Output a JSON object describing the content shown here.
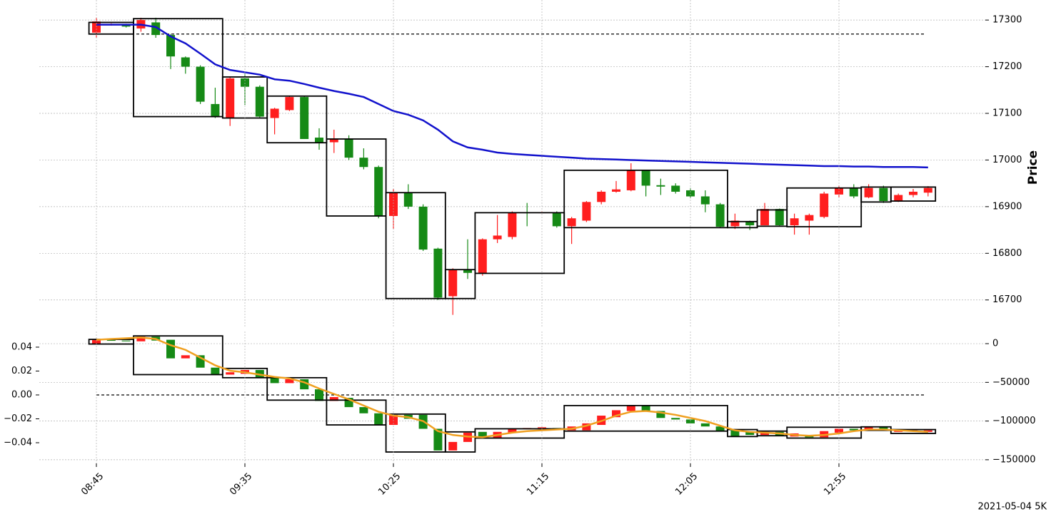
{
  "chart_data": [
    {
      "type": "candlestick",
      "ylabel": "Price",
      "up_color": "#ff1e1e",
      "down_color": "#168a16",
      "open": [
        17273,
        17290,
        17290,
        17282,
        17295,
        17268,
        17220,
        17200,
        17120,
        17090,
        17175,
        17157,
        17090,
        17107,
        17135,
        17048,
        17038,
        17045,
        17005,
        16985,
        16880,
        16930,
        16900,
        16810,
        16708,
        16765,
        16758,
        16830,
        16835,
        16888,
        16886,
        16888,
        16858,
        16870,
        16910,
        16932,
        16935,
        16977,
        16946,
        16945,
        16935,
        16922,
        16905,
        16858,
        16867,
        16860,
        16895,
        16860,
        16870,
        16878,
        16926,
        16940,
        16920,
        16940,
        16912,
        16925,
        16930
      ],
      "high": [
        17305,
        17293,
        17292,
        17305,
        17305,
        17270,
        17222,
        17203,
        17155,
        17178,
        17185,
        17160,
        17112,
        17138,
        17138,
        17068,
        17065,
        17053,
        17025,
        16988,
        16938,
        16948,
        16905,
        16812,
        16768,
        16830,
        16832,
        16882,
        16890,
        16908,
        16890,
        16890,
        16878,
        16912,
        16935,
        16955,
        16993,
        16978,
        16960,
        16950,
        16940,
        16935,
        16908,
        16885,
        16870,
        16908,
        16896,
        16885,
        16885,
        16932,
        16945,
        16948,
        16948,
        16945,
        16928,
        16938,
        16944
      ],
      "low": [
        17262,
        17288,
        17284,
        17275,
        17262,
        17195,
        17185,
        17120,
        17090,
        17073,
        17118,
        17090,
        17055,
        17105,
        17045,
        17022,
        17015,
        17000,
        16980,
        16875,
        16852,
        16895,
        16805,
        16700,
        16668,
        16745,
        16752,
        16822,
        16830,
        16858,
        16886,
        16855,
        16820,
        16867,
        16905,
        16930,
        16933,
        16922,
        16925,
        16928,
        16918,
        16888,
        16855,
        16852,
        16850,
        16860,
        16858,
        16840,
        16840,
        16875,
        16920,
        16918,
        16918,
        16908,
        16910,
        16920,
        16922
      ],
      "close": [
        17297,
        17291,
        17286,
        17300,
        17268,
        17222,
        17200,
        17125,
        17093,
        17175,
        17157,
        17093,
        17110,
        17135,
        17045,
        17038,
        17045,
        17005,
        16985,
        16880,
        16930,
        16900,
        16808,
        16705,
        16765,
        16758,
        16830,
        16838,
        16888,
        16886,
        16888,
        16858,
        16875,
        16910,
        16932,
        16937,
        16977,
        16945,
        16943,
        16932,
        16922,
        16905,
        16857,
        16870,
        16860,
        16895,
        16860,
        16875,
        16882,
        16928,
        16940,
        16922,
        16940,
        16912,
        16925,
        16932,
        16940
      ],
      "lines": [
        {
          "color": "#1212cc",
          "values": [
            17290,
            17290,
            17290,
            17290,
            17285,
            17265,
            17250,
            17228,
            17205,
            17193,
            17188,
            17183,
            17173,
            17170,
            17163,
            17155,
            17148,
            17142,
            17135,
            17120,
            17105,
            17097,
            17085,
            17065,
            17040,
            17027,
            17022,
            17016,
            17013,
            17011,
            17009,
            17007,
            17005,
            17003,
            17002,
            17001,
            17000,
            16999,
            16998,
            16997,
            16996,
            16995,
            16994,
            16993,
            16992,
            16991,
            16990,
            16989,
            16988,
            16987,
            16987,
            16986,
            16986,
            16985,
            16985,
            16985,
            16984
          ]
        }
      ],
      "hline": 17270,
      "boxes": [
        {
          "first": 0,
          "last": 2,
          "top": 17295,
          "bottom": 17270
        },
        {
          "first": 3,
          "last": 8,
          "top": 17303,
          "bottom": 17093
        },
        {
          "first": 9,
          "last": 11,
          "top": 17178,
          "bottom": 17090
        },
        {
          "first": 12,
          "last": 15,
          "top": 17137,
          "bottom": 17037
        },
        {
          "first": 16,
          "last": 19,
          "top": 17045,
          "bottom": 16880
        },
        {
          "first": 20,
          "last": 23,
          "top": 16930,
          "bottom": 16703
        },
        {
          "first": 24,
          "last": 25,
          "top": 16765,
          "bottom": 16703
        },
        {
          "first": 26,
          "last": 31,
          "top": 16887,
          "bottom": 16757
        },
        {
          "first": 32,
          "last": 42,
          "top": 16978,
          "bottom": 16855
        },
        {
          "first": 43,
          "last": 44,
          "top": 16868,
          "bottom": 16855
        },
        {
          "first": 45,
          "last": 46,
          "top": 16893,
          "bottom": 16858
        },
        {
          "first": 47,
          "last": 51,
          "top": 16940,
          "bottom": 16857
        },
        {
          "first": 52,
          "last": 53,
          "top": 16942,
          "bottom": 16910
        },
        {
          "first": 54,
          "last": 56,
          "top": 16942,
          "bottom": 16912
        }
      ],
      "ylim": [
        16640,
        17343
      ],
      "yticks": [
        16700,
        16800,
        16900,
        17000,
        17100,
        17200,
        17300
      ],
      "grid": true
    },
    {
      "type": "candlestick",
      "up_color": "#ff1e1e",
      "down_color": "#168a16",
      "categories": [
        "08:45",
        null,
        null,
        null,
        null,
        null,
        null,
        null,
        null,
        null,
        "09:35",
        null,
        null,
        null,
        null,
        null,
        null,
        null,
        null,
        null,
        "10:25",
        null,
        null,
        null,
        null,
        null,
        null,
        null,
        null,
        null,
        "11:15",
        null,
        null,
        null,
        null,
        null,
        null,
        null,
        null,
        null,
        "12:05",
        null,
        null,
        null,
        null,
        null,
        null,
        null,
        null,
        null,
        "12:55",
        null,
        null,
        null,
        null,
        null,
        null
      ],
      "open": [
        0,
        4600,
        4000,
        3000,
        9000,
        5000,
        -19000,
        -15000,
        -31000,
        -40000,
        -39000,
        -34000,
        -44000,
        -51000,
        -46000,
        -59000,
        -74000,
        -70000,
        -82000,
        -90000,
        -105000,
        -92000,
        -92000,
        -110000,
        -138000,
        -127000,
        -114000,
        -122000,
        -115000,
        -110000,
        -109000,
        -109000,
        -112000,
        -112000,
        -105000,
        -95000,
        -87000,
        -80000,
        -87000,
        -96000,
        -98000,
        -103000,
        -107000,
        -112000,
        -114000,
        -118000,
        -114000,
        -120000,
        -118000,
        -121000,
        -115000,
        -110000,
        -112000,
        -108000,
        -114000,
        -113000,
        -114000
      ],
      "close": [
        4600,
        4000,
        3000,
        9000,
        4000,
        -19000,
        -15000,
        -31000,
        -40000,
        -37000,
        -34000,
        -44000,
        -51000,
        -46000,
        -59000,
        -74000,
        -69000,
        -82000,
        -90000,
        -105000,
        -92000,
        -97000,
        -110000,
        -138000,
        -127000,
        -115000,
        -122000,
        -114000,
        -110000,
        -109000,
        -108000,
        -110000,
        -107000,
        -103000,
        -93000,
        -86000,
        -80000,
        -87000,
        -96000,
        -98000,
        -103000,
        -107000,
        -113000,
        -120000,
        -118000,
        -114000,
        -119000,
        -116000,
        -121000,
        -113000,
        -110000,
        -112000,
        -108000,
        -112000,
        -112000,
        -112000,
        -112000
      ],
      "axis": "y2",
      "lines": [
        {
          "color": "#f0a020",
          "axis": "y2",
          "values": [
            5000,
            6000,
            7000,
            8000,
            6000,
            -2000,
            -8000,
            -18000,
            -28000,
            -35000,
            -37000,
            -40000,
            -43000,
            -45000,
            -50000,
            -58000,
            -65000,
            -72000,
            -80000,
            -88000,
            -93000,
            -95000,
            -100000,
            -113000,
            -118000,
            -120000,
            -121000,
            -118000,
            -115000,
            -113000,
            -112000,
            -111000,
            -110000,
            -106000,
            -100000,
            -93000,
            -88000,
            -87000,
            -89000,
            -92000,
            -96000,
            -100000,
            -106000,
            -112000,
            -114000,
            -115000,
            -116000,
            -118000,
            -119000,
            -118000,
            -116000,
            -113000,
            -111000,
            -111000,
            -112000,
            -113000,
            -114000
          ]
        }
      ],
      "hline": 0,
      "boxes": [
        {
          "first": 0,
          "last": 2,
          "top": 5500,
          "bottom": -500
        },
        {
          "first": 3,
          "last": 8,
          "top": 10000,
          "bottom": -40000
        },
        {
          "first": 9,
          "last": 11,
          "top": -32000,
          "bottom": -44000
        },
        {
          "first": 12,
          "last": 15,
          "top": -44000,
          "bottom": -73000
        },
        {
          "first": 16,
          "last": 19,
          "top": -73000,
          "bottom": -105000
        },
        {
          "first": 20,
          "last": 23,
          "top": -91000,
          "bottom": -140000
        },
        {
          "first": 24,
          "last": 25,
          "top": -114000,
          "bottom": -140000
        },
        {
          "first": 26,
          "last": 31,
          "top": -110000,
          "bottom": -122000
        },
        {
          "first": 32,
          "last": 42,
          "top": -80000,
          "bottom": -113000
        },
        {
          "first": 43,
          "last": 44,
          "top": -111000,
          "bottom": -120000
        },
        {
          "first": 45,
          "last": 46,
          "top": -113000,
          "bottom": -119000
        },
        {
          "first": 47,
          "last": 51,
          "top": -108000,
          "bottom": -122000
        },
        {
          "first": 52,
          "last": 53,
          "top": -107500,
          "bottom": -112000
        },
        {
          "first": 54,
          "last": 56,
          "top": -111000,
          "bottom": -116000
        }
      ],
      "ylim": [
        -0.0573,
        0.0531
      ],
      "yticks": [
        0.04,
        0.02,
        {
          "value": 0,
          "label": "0.00"
        },
        {
          "value": -0.02,
          "label": "−0.02"
        },
        {
          "value": -0.04,
          "label": "−0.04"
        }
      ],
      "y2lim": [
        -154700,
        15700
      ],
      "y2ticks": [
        0,
        {
          "value": -50000,
          "label": "−50000"
        },
        {
          "value": -100000,
          "label": "−100000"
        },
        {
          "value": -150000,
          "label": "−150000"
        }
      ],
      "grid": true
    }
  ],
  "footer": "2021-05-04 5K"
}
